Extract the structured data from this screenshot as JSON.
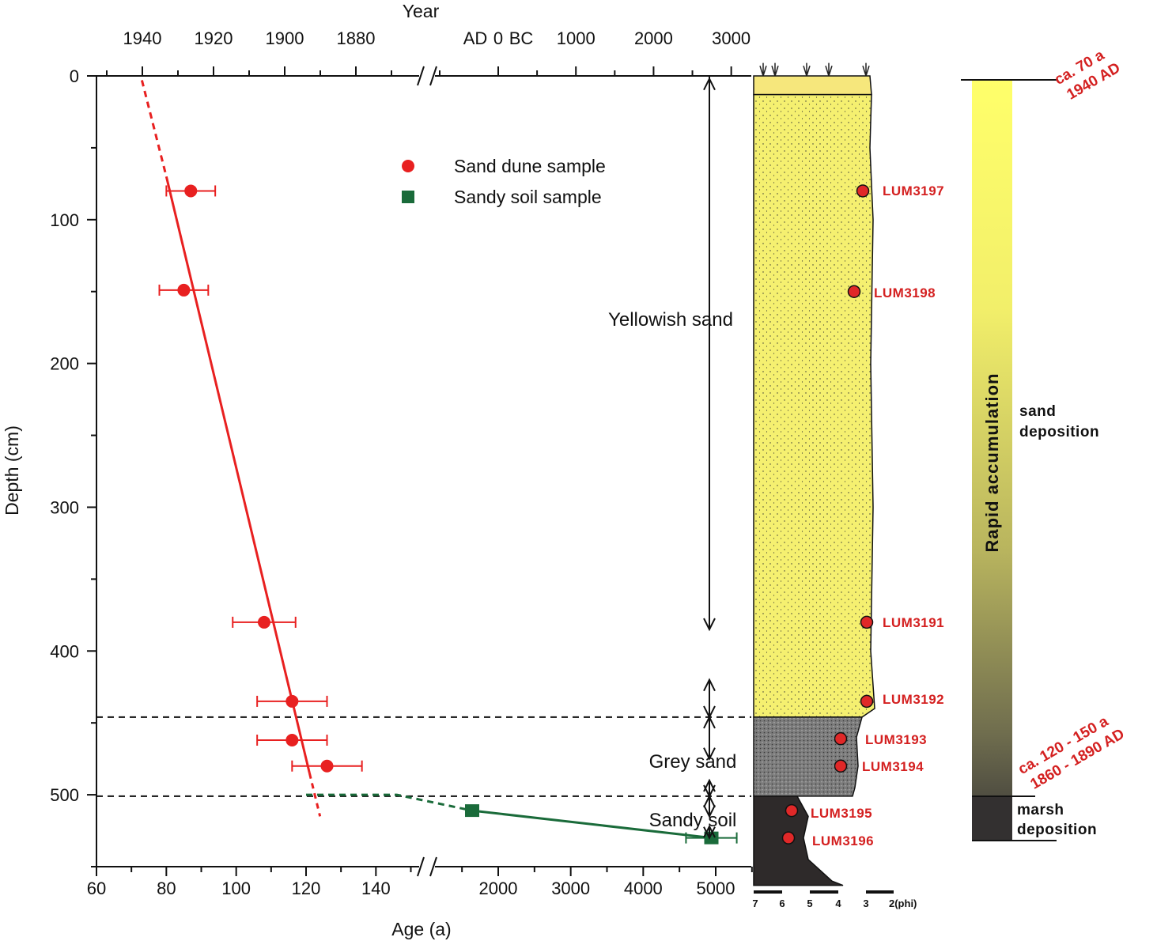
{
  "chart_data": {
    "type": "scatter",
    "title": "",
    "ylabel": "Depth (cm)",
    "xlabel": "Age (a)",
    "top_axis_label": "Year",
    "ylim": [
      0,
      550
    ],
    "y_ticks": [
      0,
      100,
      200,
      300,
      400,
      500
    ],
    "x_ticks_left": [
      60,
      80,
      100,
      120,
      140
    ],
    "x_ticks_right": [
      2000,
      3000,
      4000,
      5000
    ],
    "top_ticks_left": [
      "1940",
      "1920",
      "1900",
      "1880"
    ],
    "top_ticks_right": [
      "AD",
      "0",
      "BC",
      "1000",
      "2000",
      "3000"
    ],
    "legend": [
      {
        "label": "Sand dune sample",
        "color": "#e82020",
        "marker": "circle"
      },
      {
        "label": "Sandy soil sample",
        "color": "#1a6b3a",
        "marker": "square"
      }
    ],
    "series": [
      {
        "name": "Sand dune sample",
        "color": "#e82020",
        "points": [
          {
            "age": 87,
            "depth": 80,
            "err": 7
          },
          {
            "age": 85,
            "depth": 149,
            "err": 7
          },
          {
            "age": 108,
            "depth": 380,
            "err": 9
          },
          {
            "age": 116,
            "depth": 435,
            "err": 10
          },
          {
            "age": 116,
            "depth": 462,
            "err": 10
          },
          {
            "age": 126,
            "depth": 480,
            "err": 10
          }
        ]
      },
      {
        "name": "Sandy soil sample",
        "color": "#1a6b3a",
        "points": [
          {
            "age": 1640,
            "depth": 511,
            "err": 0
          },
          {
            "age": 4940,
            "depth": 530,
            "err": 350
          }
        ]
      }
    ],
    "boundaries_depth": [
      446,
      501
    ],
    "units": [
      {
        "label": "Yellowish sand"
      },
      {
        "label": "Grey sand"
      },
      {
        "label": "Sandy soil"
      }
    ],
    "column": {
      "samples": [
        {
          "label": "LUM3197",
          "depth": 80
        },
        {
          "label": "LUM3198",
          "depth": 150
        },
        {
          "label": "LUM3191",
          "depth": 380
        },
        {
          "label": "LUM3192",
          "depth": 435
        },
        {
          "label": "LUM3193",
          "depth": 461
        },
        {
          "label": "LUM3194",
          "depth": 480
        },
        {
          "label": "LUM3195",
          "depth": 511
        },
        {
          "label": "LUM3196",
          "depth": 530
        }
      ],
      "phi_labels": [
        "7",
        "6",
        "5",
        "4",
        "3",
        "2(phi)"
      ]
    },
    "phase_bar": {
      "title": "Rapid accumulation",
      "top_age": [
        "ca. 70 a",
        "1940 AD"
      ],
      "mid_age": [
        "ca. 120 - 150 a",
        "1860 - 1890 AD"
      ],
      "sand_label": [
        "sand",
        "deposition"
      ],
      "marsh_label": [
        "marsh",
        "deposition"
      ]
    }
  }
}
